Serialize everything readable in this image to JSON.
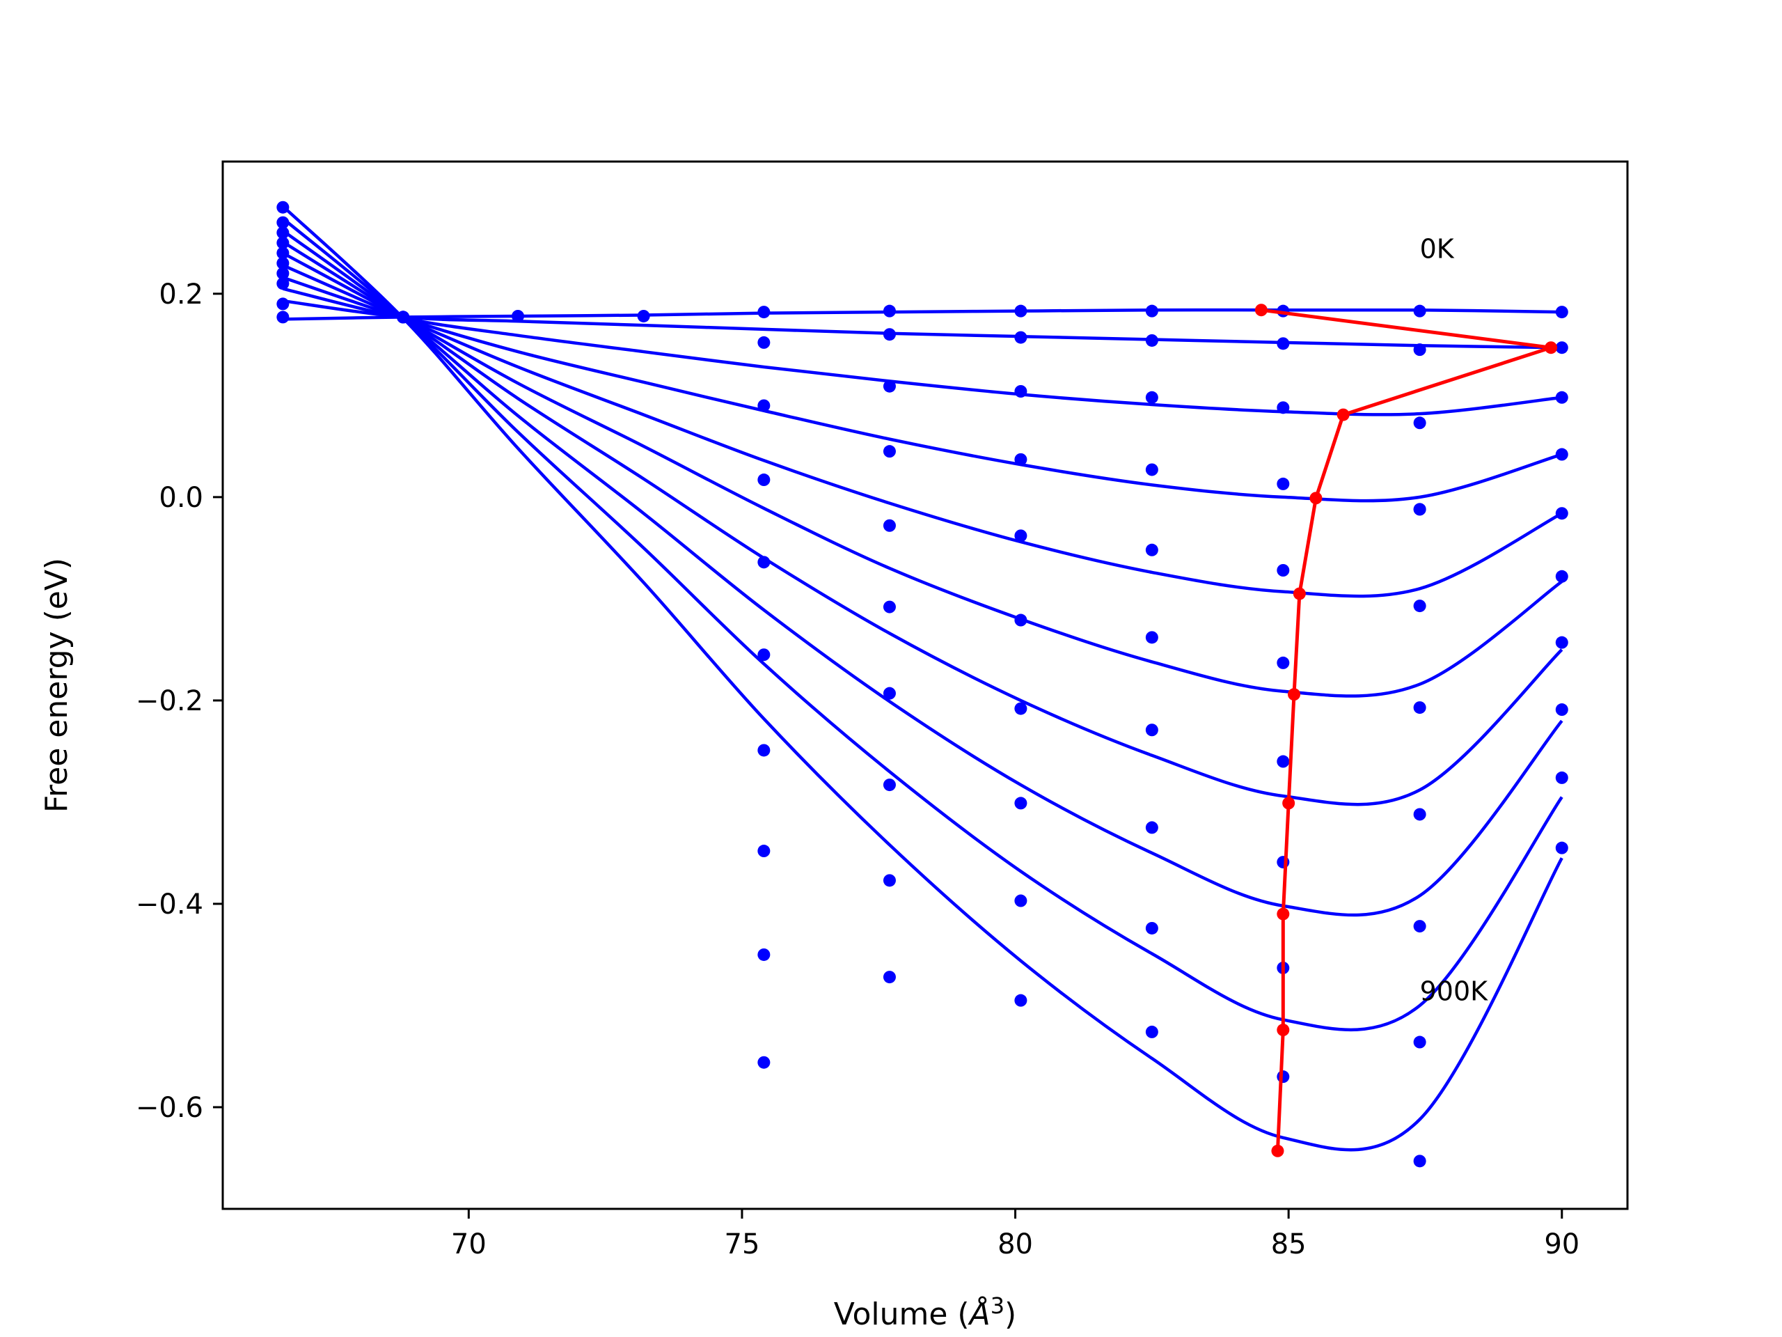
{
  "chart_data": {
    "type": "line",
    "title": "",
    "xlabel": "Volume (",
    "xlabel_symbol": "Å",
    "xlabel_exponent": "3",
    "xlabel_close": ")",
    "ylabel": "Free energy (eV)",
    "xlim": [
      65.5,
      91.2
    ],
    "ylim": [
      -0.7,
      0.33
    ],
    "xticks": [
      70,
      75,
      80,
      85,
      90
    ],
    "xtick_labels": [
      "70",
      "75",
      "80",
      "85",
      "90"
    ],
    "yticks": [
      -0.6,
      -0.4,
      -0.2,
      0.0,
      0.2
    ],
    "ytick_labels": [
      "−0.6",
      "−0.4",
      "−0.2",
      "0.0",
      "0.2"
    ],
    "grid": false,
    "colors": {
      "fit": "#0000ff",
      "points": "#0000ff",
      "minimum": "#ff0000"
    },
    "annotations": [
      {
        "text": "0K",
        "x": 87.4,
        "y": 0.235
      },
      {
        "text": "900K",
        "x": 87.4,
        "y": -0.495
      }
    ],
    "volumes": [
      66.6,
      68.8,
      70.9,
      73.2,
      75.4,
      77.7,
      80.1,
      82.5,
      84.9,
      87.4,
      90.0
    ],
    "series": [
      {
        "temperature_index": 0,
        "points_y": [
          0.177,
          0.177,
          0.178,
          0.178,
          0.182,
          0.183,
          0.183,
          0.183,
          0.183,
          0.183,
          0.182
        ],
        "curve_y": [
          0.175,
          0.177,
          0.178,
          0.179,
          0.181,
          0.182,
          0.183,
          0.184,
          0.184,
          0.184,
          0.182
        ],
        "min": [
          84.5,
          0.184
        ]
      },
      {
        "temperature_index": 1,
        "points_y": [
          0.19,
          0.177,
          null,
          null,
          0.152,
          0.16,
          0.157,
          0.154,
          0.151,
          0.145,
          0.147
        ],
        "curve_y": [
          0.193,
          0.177,
          0.173,
          0.169,
          0.165,
          0.161,
          0.158,
          0.155,
          0.152,
          0.149,
          0.147
        ],
        "min": [
          89.8,
          0.147
        ]
      },
      {
        "temperature_index": 2,
        "points_y": [
          0.21,
          0.177,
          null,
          null,
          null,
          0.109,
          0.104,
          0.098,
          0.088,
          0.073,
          0.098
        ],
        "curve_y": [
          0.205,
          0.176,
          0.159,
          0.143,
          0.128,
          0.114,
          0.101,
          0.091,
          0.084,
          0.082,
          0.098
        ],
        "min": [
          86.0,
          0.081
        ]
      },
      {
        "temperature_index": 3,
        "points_y": [
          0.22,
          0.177,
          null,
          null,
          0.09,
          0.045,
          0.037,
          0.027,
          0.013,
          -0.012,
          0.042
        ],
        "curve_y": [
          0.216,
          0.176,
          0.143,
          0.113,
          0.085,
          0.057,
          0.032,
          0.012,
          0.0,
          0.0,
          0.042
        ],
        "min": [
          85.5,
          -0.001
        ]
      },
      {
        "temperature_index": 4,
        "points_y": [
          0.23,
          0.177,
          null,
          null,
          0.017,
          -0.028,
          -0.038,
          -0.052,
          -0.072,
          -0.012,
          -0.016
        ],
        "curve_y": [
          0.228,
          0.176,
          0.128,
          0.081,
          0.036,
          -0.006,
          -0.044,
          -0.074,
          -0.093,
          -0.09,
          -0.016
        ],
        "min": [
          85.2,
          -0.095
        ]
      },
      {
        "temperature_index": 5,
        "points_y": [
          0.24,
          0.177,
          null,
          null,
          -0.064,
          -0.108,
          -0.121,
          -0.138,
          -0.163,
          -0.107,
          -0.078
        ],
        "curve_y": [
          0.24,
          0.176,
          0.112,
          0.05,
          -0.011,
          -0.07,
          -0.12,
          -0.162,
          -0.191,
          -0.184,
          -0.083
        ],
        "min": [
          85.1,
          -0.194
        ]
      },
      {
        "temperature_index": 6,
        "points_y": [
          0.25,
          0.177,
          null,
          null,
          -0.155,
          -0.193,
          -0.208,
          -0.229,
          -0.26,
          -0.207,
          -0.143
        ],
        "curve_y": [
          0.251,
          0.176,
          0.097,
          0.018,
          -0.06,
          -0.134,
          -0.2,
          -0.254,
          -0.294,
          -0.288,
          -0.15
        ],
        "min": [
          85.0,
          -0.301
        ]
      },
      {
        "temperature_index": 7,
        "points_y": [
          0.26,
          0.177,
          null,
          null,
          -0.249,
          -0.283,
          -0.301,
          -0.325,
          -0.359,
          -0.312,
          -0.209
        ],
        "curve_y": [
          0.262,
          0.176,
          0.08,
          -0.016,
          -0.111,
          -0.201,
          -0.283,
          -0.35,
          -0.402,
          -0.392,
          -0.22
        ],
        "min": [
          84.9,
          -0.41
        ]
      },
      {
        "temperature_index": 8,
        "points_y": [
          0.27,
          0.177,
          null,
          null,
          -0.348,
          -0.377,
          -0.397,
          -0.424,
          -0.463,
          -0.422,
          -0.276
        ],
        "curve_y": [
          0.274,
          0.176,
          0.064,
          -0.05,
          -0.164,
          -0.27,
          -0.368,
          -0.449,
          -0.514,
          -0.5,
          -0.295
        ],
        "min": [
          84.9,
          -0.524
        ]
      },
      {
        "temperature_index": 9,
        "points_y": [
          0.285,
          0.177,
          null,
          null,
          -0.45,
          -0.472,
          -0.495,
          -0.526,
          -0.57,
          -0.536,
          -0.345
        ],
        "curve_y": [
          0.286,
          0.176,
          0.048,
          -0.084,
          -0.218,
          -0.342,
          -0.456,
          -0.552,
          -0.63,
          -0.612,
          -0.355
        ],
        "min": [
          84.8,
          -0.643
        ]
      }
    ],
    "extra_points": [
      {
        "x": 75.4,
        "y": -0.556
      },
      {
        "x": 87.4,
        "y": -0.653
      }
    ]
  }
}
